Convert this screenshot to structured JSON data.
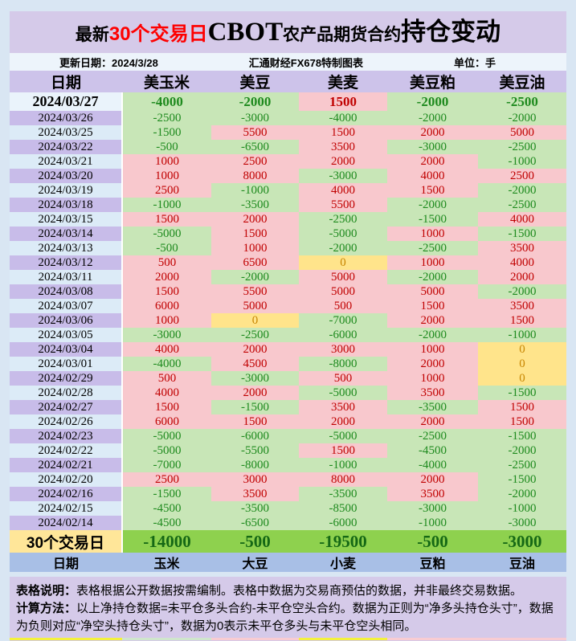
{
  "header": {
    "title_parts": [
      {
        "text": "最新",
        "kind": "md"
      },
      {
        "text": "30个交易日",
        "kind": "red"
      },
      {
        "text": "CBOT",
        "kind": "cbot"
      },
      {
        "text": "农产品期货合约",
        "kind": "md"
      },
      {
        "text": "持仓变动",
        "kind": "xl"
      }
    ],
    "update_label": "更新日期：2024/3/28",
    "source_label": "汇通财经FX678特制图表",
    "unit_label": "单位：手"
  },
  "chart_data": {
    "type": "table",
    "title": "最新30个交易日CBOT农产品期货合约持仓变动",
    "unit": "手",
    "updated": "2024/3/28",
    "columns": [
      "日期",
      "美玉米",
      "美豆",
      "美麦",
      "美豆粕",
      "美豆油"
    ],
    "rows": [
      {
        "date": "2024/03/27",
        "values": [
          -4000,
          -2000,
          1500,
          -2000,
          -2500
        ]
      },
      {
        "date": "2024/03/26",
        "values": [
          -2500,
          -3000,
          -4000,
          -2000,
          -2000
        ]
      },
      {
        "date": "2024/03/25",
        "values": [
          -1500,
          5500,
          1500,
          2000,
          5000
        ]
      },
      {
        "date": "2024/03/22",
        "values": [
          -500,
          -6500,
          3500,
          -3000,
          -2500
        ]
      },
      {
        "date": "2024/03/21",
        "values": [
          1000,
          2500,
          2000,
          2000,
          -1000
        ]
      },
      {
        "date": "2024/03/20",
        "values": [
          1000,
          8000,
          -3000,
          4000,
          2500
        ]
      },
      {
        "date": "2024/03/19",
        "values": [
          2500,
          -1000,
          4000,
          1500,
          -2000
        ]
      },
      {
        "date": "2024/03/18",
        "values": [
          -1000,
          -3500,
          5500,
          -2000,
          -2500
        ]
      },
      {
        "date": "2024/03/15",
        "values": [
          1500,
          2000,
          -2500,
          -1500,
          4000
        ]
      },
      {
        "date": "2024/03/14",
        "values": [
          -5000,
          1500,
          -5000,
          1000,
          -1500
        ]
      },
      {
        "date": "2024/03/13",
        "values": [
          -500,
          1000,
          -2000,
          -2500,
          3500
        ]
      },
      {
        "date": "2024/03/12",
        "values": [
          500,
          6500,
          0,
          1000,
          4000
        ]
      },
      {
        "date": "2024/03/11",
        "values": [
          2000,
          -2000,
          5000,
          -2000,
          2000
        ]
      },
      {
        "date": "2024/03/08",
        "values": [
          1500,
          5500,
          5000,
          5000,
          -2000
        ]
      },
      {
        "date": "2024/03/07",
        "values": [
          6000,
          5000,
          500,
          1500,
          3500
        ]
      },
      {
        "date": "2024/03/06",
        "values": [
          1000,
          0,
          -7000,
          2000,
          1500
        ]
      },
      {
        "date": "2024/03/05",
        "values": [
          -3000,
          -2500,
          -6000,
          -2000,
          -1000
        ]
      },
      {
        "date": "2024/03/04",
        "values": [
          4000,
          2000,
          3000,
          1000,
          0
        ]
      },
      {
        "date": "2024/03/01",
        "values": [
          -4000,
          4500,
          -8000,
          2000,
          0
        ]
      },
      {
        "date": "2024/02/29",
        "values": [
          500,
          -3000,
          500,
          1000,
          0
        ]
      },
      {
        "date": "2024/02/28",
        "values": [
          4000,
          2000,
          -5000,
          3500,
          -1500
        ]
      },
      {
        "date": "2024/02/27",
        "values": [
          1500,
          -1500,
          3500,
          -3500,
          1500
        ]
      },
      {
        "date": "2024/02/26",
        "values": [
          6000,
          1500,
          2000,
          2000,
          1500
        ]
      },
      {
        "date": "2024/02/23",
        "values": [
          -5000,
          -6000,
          -5000,
          -2500,
          -1500
        ]
      },
      {
        "date": "2024/02/22",
        "values": [
          -5000,
          -5500,
          1500,
          -4500,
          -2000
        ]
      },
      {
        "date": "2024/02/21",
        "values": [
          -7000,
          -8000,
          -1000,
          -4000,
          -2500
        ]
      },
      {
        "date": "2024/02/20",
        "values": [
          2500,
          3000,
          8000,
          2000,
          -1500
        ]
      },
      {
        "date": "2024/02/16",
        "values": [
          -1500,
          3500,
          -3500,
          3500,
          -2000
        ]
      },
      {
        "date": "2024/02/15",
        "values": [
          -4500,
          -3500,
          -8500,
          -3000,
          -1000
        ]
      },
      {
        "date": "2024/02/14",
        "values": [
          -4500,
          -6500,
          -6000,
          -1000,
          -3000
        ]
      }
    ],
    "summary": {
      "label": "30个交易日",
      "values": [
        -14000,
        -500,
        -19500,
        -500,
        -3000
      ]
    },
    "footer_columns": [
      "日期",
      "玉米",
      "大豆",
      "小麦",
      "豆粕",
      "豆油"
    ],
    "color_rule": "正值红底红字，负值绿底绿字，0为黄底橙字"
  },
  "notes": {
    "line1_label": "表格说明：",
    "line1_text": "表格根据公开数据按需编制。表格中数据为交易商预估的数据，并非最终交易数据。",
    "line2_label": "计算方法：",
    "line2_text": "以上净持仓数据=未平仓多头合约-未平仓空头合约。数据为正则为“净多头持仓头寸”，数据为负则对应“净空头持仓头寸”，数据为0表示未平仓多头与未平仓空头相同。"
  },
  "colors": {
    "pos-bg": "#f8c8cd",
    "pos-fg": "#c00000",
    "neg-bg": "#c8e6b7",
    "neg-fg": "#1e8a1e",
    "zero-bg": "#ffe48b",
    "zero-fg": "#c78500",
    "sum-bg": "#8ed14e",
    "sum-fg": "#156815",
    "sumlabel-bg": "#ffe699"
  }
}
